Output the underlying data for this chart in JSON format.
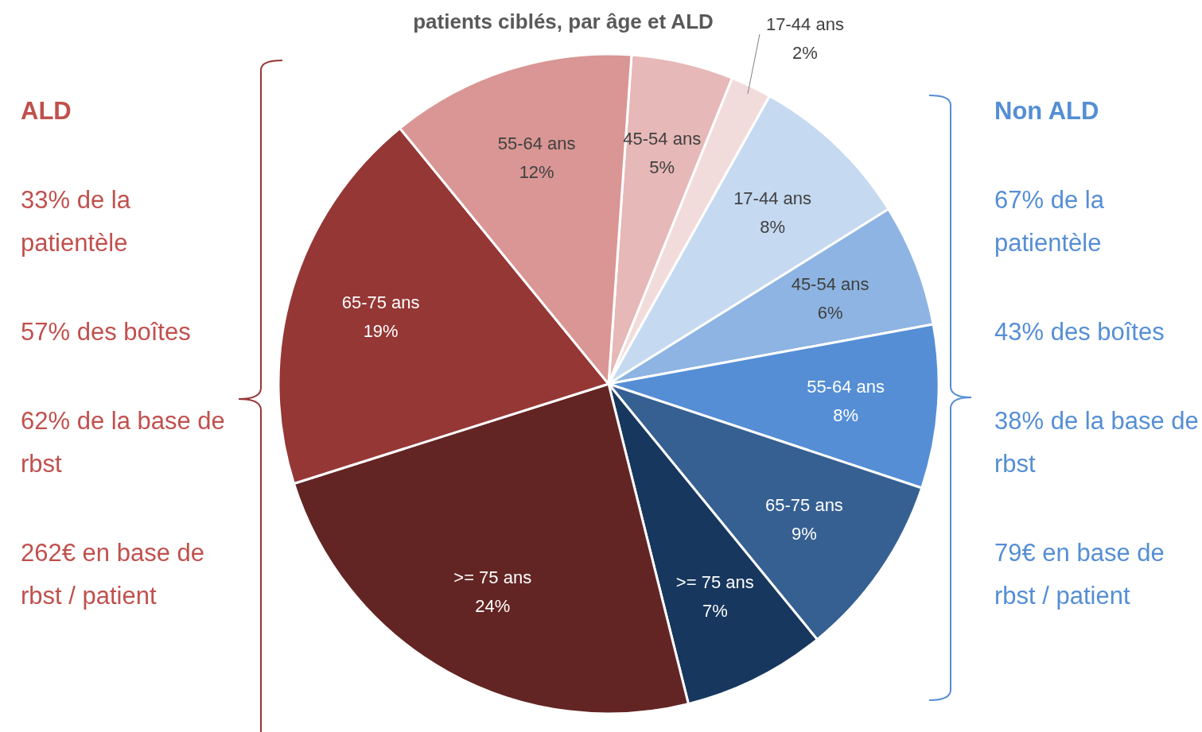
{
  "chart_data": {
    "type": "pie",
    "title": "patients ciblés, par âge et ALD",
    "categories": [
      "45-54 ans",
      "17-44 ans",
      "17-44 ans",
      "45-54 ans",
      "55-64 ans",
      "65-75 ans",
      ">= 75 ans",
      ">= 75 ans",
      "65-75 ans",
      "55-64 ans"
    ],
    "values": [
      5,
      2,
      8,
      6,
      8,
      9,
      7,
      24,
      19,
      12
    ],
    "value_labels": [
      "5%",
      "2%",
      "8%",
      "6%",
      "8%",
      "9%",
      "7%",
      "24%",
      "19%",
      "12%"
    ],
    "colors": [
      "#e6b8b7",
      "#f2dcdb",
      "#c5d9f1",
      "#8db4e2",
      "#558ed5",
      "#366092",
      "#17375e",
      "#632523",
      "#953735",
      "#d99694"
    ],
    "annotations": [
      "ALD",
      "33% de la patientèle",
      "57% des boîtes",
      "62% de la base de rbst",
      "262€ en base de rbst / patient",
      "Non ALD",
      "67% de la patientèle",
      "43% des boîtes",
      "38% de la base de rbst",
      "79€ en base de rbst / patient"
    ]
  }
}
